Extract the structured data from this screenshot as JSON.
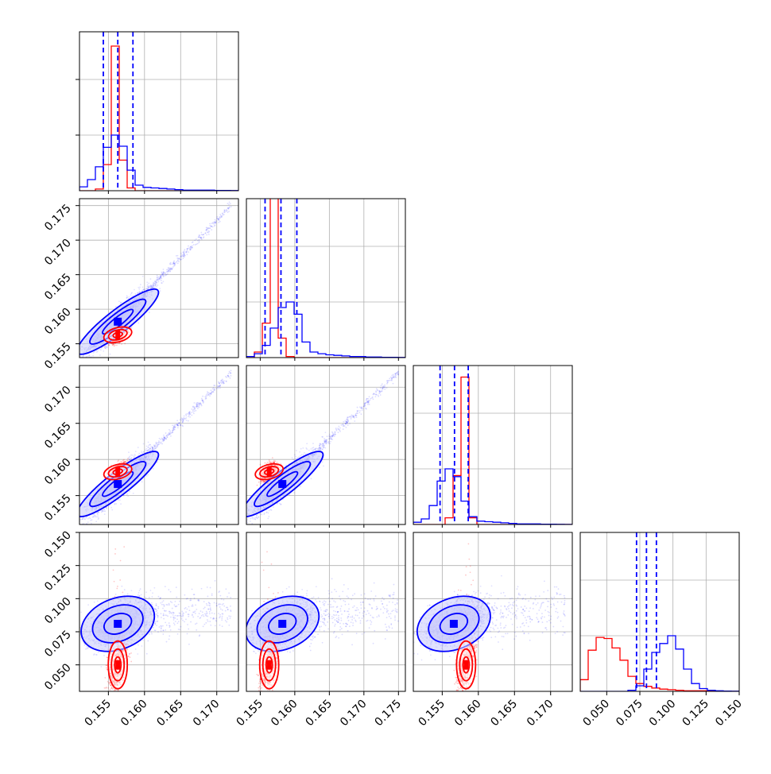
{
  "chart_data": {
    "type": "scatter",
    "kind": "corner-plot",
    "title": "",
    "grid": true,
    "legend": "none",
    "colors": {
      "series_a": "#0000ff",
      "series_b": "#ff0000",
      "contour_fill": "#c9cbfb"
    },
    "dims": [
      {
        "range": [
          0.151,
          0.173
        ],
        "ticks": [
          "0.155",
          "0.160",
          "0.165",
          "0.170"
        ]
      },
      {
        "range": [
          0.153,
          0.176
        ],
        "ticks": [
          "0.155",
          "0.160",
          "0.165",
          "0.170",
          "0.175"
        ]
      },
      {
        "range": [
          0.151,
          0.173
        ],
        "ticks": [
          "0.155",
          "0.160",
          "0.165",
          "0.170"
        ]
      },
      {
        "range": [
          0.03,
          0.15
        ],
        "ticks": [
          "0.050",
          "0.075",
          "0.100",
          "0.125",
          "0.150"
        ]
      }
    ],
    "series": [
      {
        "color": "#0000ff",
        "mean": [
          0.1563,
          0.1582,
          0.1566,
          0.081
        ],
        "std": [
          0.0021,
          0.0022,
          0.0021,
          0.0085
        ],
        "quantiles": [
          [
            0.1543,
            0.1563,
            0.1584
          ],
          [
            0.1557,
            0.158,
            0.1603
          ],
          [
            0.1547,
            0.1567,
            0.1586
          ],
          [
            0.0725,
            0.08,
            0.0875
          ]
        ],
        "tail_to": [
          0.172,
          0.175,
          0.172,
          0.135
        ]
      },
      {
        "color": "#ff0000",
        "mean": [
          0.1563,
          0.1563,
          0.1583,
          0.05
        ],
        "std": [
          0.0006,
          0.0006,
          0.0006,
          0.009
        ]
      }
    ],
    "histograms": [
      {
        "bins": [
          0.151,
          0.173
        ],
        "blue": [
          0.07,
          0.2,
          0.43,
          0.78,
          1.0,
          0.8,
          0.37,
          0.1,
          0.06,
          0.05,
          0.04,
          0.03,
          0.02,
          0.01,
          0.01,
          0.01,
          0.01,
          0.005,
          0.005,
          0.003
        ],
        "red": [
          0,
          0,
          0.03,
          0.47,
          2.6,
          0.55,
          0.05,
          0,
          0,
          0,
          0,
          0,
          0,
          0,
          0,
          0,
          0,
          0,
          0,
          0
        ]
      },
      {
        "bins": [
          0.153,
          0.176
        ],
        "blue": [
          0.02,
          0.07,
          0.22,
          0.53,
          0.9,
          1.0,
          0.78,
          0.28,
          0.1,
          0.07,
          0.05,
          0.04,
          0.03,
          0.02,
          0.02,
          0.01,
          0.01,
          0.005,
          0.005,
          0.003
        ],
        "red": [
          0,
          0.1,
          0.62,
          3.0,
          0.35,
          0.02,
          0,
          0,
          0,
          0,
          0,
          0,
          0,
          0,
          0,
          0,
          0,
          0,
          0,
          0
        ]
      },
      {
        "bins": [
          0.151,
          0.173
        ],
        "blue": [
          0.04,
          0.1,
          0.34,
          0.78,
          1.0,
          0.86,
          0.42,
          0.14,
          0.06,
          0.05,
          0.04,
          0.03,
          0.02,
          0.01,
          0.01,
          0.01,
          0.005,
          0.005,
          0.003,
          0.002
        ],
        "red": [
          0,
          0,
          0,
          0,
          0.12,
          0.88,
          2.65,
          0.12,
          0,
          0,
          0,
          0,
          0,
          0,
          0,
          0,
          0,
          0,
          0,
          0
        ]
      },
      {
        "bins": [
          0.03,
          0.15
        ],
        "blue": [
          0,
          0,
          0,
          0,
          0,
          0,
          0.02,
          0.1,
          0.4,
          0.7,
          0.86,
          1.0,
          0.76,
          0.4,
          0.14,
          0.05,
          0.02,
          0.01,
          0.005,
          0.003
        ],
        "red": [
          0.21,
          0.74,
          0.97,
          0.95,
          0.78,
          0.56,
          0.27,
          0.14,
          0.09,
          0.06,
          0.04,
          0.03,
          0.02,
          0.01,
          0.01,
          0.01,
          0.005,
          0.003,
          0.002,
          0
        ]
      }
    ]
  }
}
